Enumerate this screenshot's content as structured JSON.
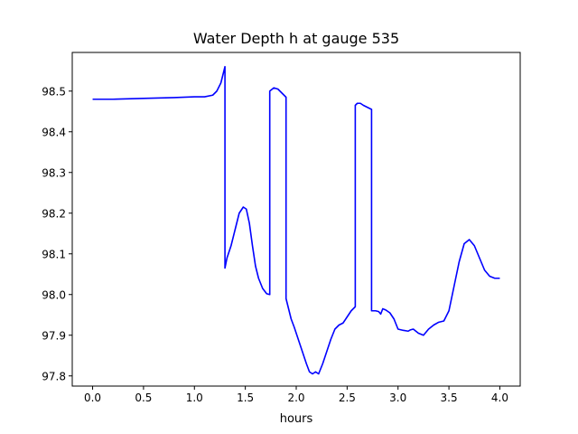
{
  "chart_data": {
    "type": "line",
    "title": "Water Depth h at gauge 535",
    "xlabel": "hours",
    "ylabel": "",
    "xlim": [
      -0.2,
      4.2
    ],
    "ylim": [
      97.775,
      98.595
    ],
    "xticks": [
      0.0,
      0.5,
      1.0,
      1.5,
      2.0,
      2.5,
      3.0,
      3.5,
      4.0
    ],
    "xtick_labels": [
      "0.0",
      "0.5",
      "1.0",
      "1.5",
      "2.0",
      "2.5",
      "3.0",
      "3.5",
      "4.0"
    ],
    "yticks": [
      97.8,
      97.9,
      98.0,
      98.1,
      98.2,
      98.3,
      98.4,
      98.5
    ],
    "ytick_labels": [
      "97.8",
      "97.9",
      "98.0",
      "98.1",
      "98.2",
      "98.3",
      "98.4",
      "98.5"
    ],
    "grid": false,
    "series": [
      {
        "color": "#0000ff",
        "x": [
          0.0,
          0.2,
          0.5,
          0.8,
          1.0,
          1.1,
          1.18,
          1.22,
          1.26,
          1.28,
          1.3,
          1.3,
          1.32,
          1.36,
          1.4,
          1.44,
          1.48,
          1.51,
          1.54,
          1.57,
          1.6,
          1.63,
          1.67,
          1.71,
          1.74,
          1.74,
          1.78,
          1.82,
          1.86,
          1.9,
          1.9,
          1.92,
          1.95,
          1.98,
          2.02,
          2.06,
          2.1,
          2.13,
          2.16,
          2.19,
          2.22,
          2.26,
          2.3,
          2.34,
          2.38,
          2.42,
          2.46,
          2.5,
          2.54,
          2.58,
          2.58,
          2.6,
          2.63,
          2.66,
          2.7,
          2.74,
          2.74,
          2.78,
          2.81,
          2.83,
          2.85,
          2.88,
          2.92,
          2.96,
          3.0,
          3.05,
          3.1,
          3.12,
          3.15,
          3.2,
          3.25,
          3.3,
          3.35,
          3.4,
          3.45,
          3.5,
          3.55,
          3.6,
          3.65,
          3.7,
          3.75,
          3.8,
          3.85,
          3.9,
          3.95,
          4.0
        ],
        "y": [
          98.48,
          98.48,
          98.482,
          98.484,
          98.486,
          98.486,
          98.49,
          98.5,
          98.52,
          98.54,
          98.56,
          98.065,
          98.09,
          98.12,
          98.16,
          98.2,
          98.215,
          98.21,
          98.175,
          98.12,
          98.07,
          98.04,
          98.015,
          98.002,
          98.0,
          98.5,
          98.508,
          98.505,
          98.495,
          98.485,
          97.99,
          97.97,
          97.94,
          97.92,
          97.89,
          97.86,
          97.83,
          97.81,
          97.805,
          97.81,
          97.805,
          97.83,
          97.86,
          97.89,
          97.915,
          97.925,
          97.93,
          97.945,
          97.96,
          97.97,
          98.465,
          98.47,
          98.47,
          98.465,
          98.46,
          98.455,
          97.96,
          97.96,
          97.958,
          97.952,
          97.965,
          97.962,
          97.955,
          97.94,
          97.915,
          97.912,
          97.91,
          97.913,
          97.915,
          97.905,
          97.9,
          97.915,
          97.925,
          97.932,
          97.935,
          97.96,
          98.02,
          98.08,
          98.125,
          98.135,
          98.12,
          98.09,
          98.06,
          98.045,
          98.04,
          98.04
        ]
      }
    ]
  }
}
